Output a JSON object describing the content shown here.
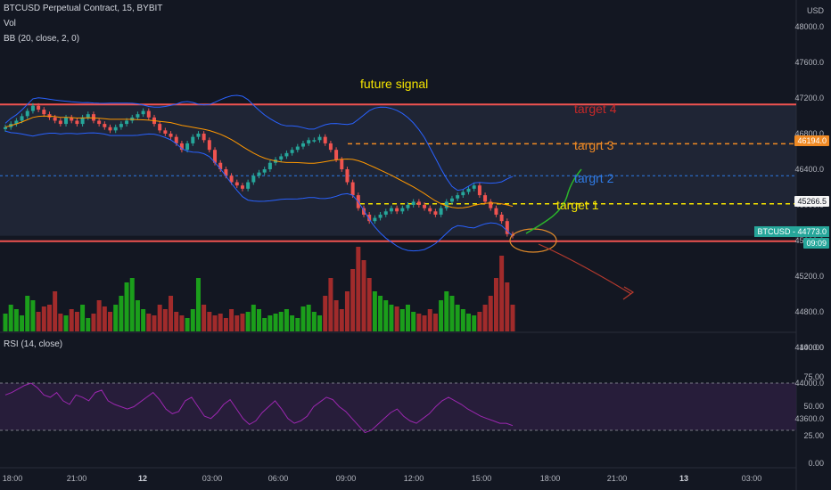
{
  "header": {
    "symbol_line": "BTCUSD Perpetual Contract, 15, BYBIT",
    "vol_label": "Vol",
    "bb_label": "BB (20, close, 2, 0)",
    "rsi_label": "RSI (14, close)"
  },
  "price_axis": {
    "currency": "USD",
    "ticks": [
      "48000.0",
      "47600.0",
      "47200.0",
      "46800.0",
      "46400.0",
      "46000.0",
      "45600.0",
      "45200.0",
      "44800.0",
      "44400.0",
      "44000.0",
      "43600.0"
    ]
  },
  "rsi_axis": {
    "ticks": [
      "100.00",
      "75.00",
      "50.00",
      "25.00",
      "0.00"
    ]
  },
  "time_axis": {
    "ticks": [
      "18:00",
      "21:00",
      "12",
      "03:00",
      "06:00",
      "09:00",
      "12:00",
      "15:00",
      "18:00",
      "21:00",
      "13",
      "03:00"
    ]
  },
  "price_tags": {
    "target3": "46194.0",
    "target1": "45266.5",
    "current_symbol": "BTCUSD",
    "current_price": "44773.0",
    "countdown": "09:09"
  },
  "annotations": {
    "title": "future signal",
    "target4": "target 4",
    "target3": "targrt 3",
    "target2": "targrt 2",
    "target1": "target 1"
  },
  "colors": {
    "background": "#131722",
    "up": "#26a69a",
    "down": "#ef5350",
    "vol_up": "#1b9e1b",
    "vol_down": "#a12b2b",
    "bb_band": "#2962ff",
    "bb_basis": "#ff9800",
    "rsi_line": "#9c27b0",
    "title_yellow": "#f5e400",
    "target4_red": "#c62828",
    "target3_orange": "#f08a24",
    "target2_blue": "#2f7be6",
    "target1_yellow": "#f5e400"
  },
  "chart_data": {
    "type": "candlestick",
    "symbol": "BTCUSD",
    "interval": "15",
    "ylim": [
      43400,
      48200
    ],
    "close_series": [
      46450,
      46500,
      46550,
      46620,
      46700,
      46780,
      46720,
      46650,
      46600,
      46550,
      46500,
      46600,
      46550,
      46500,
      46600,
      46650,
      46550,
      46500,
      46450,
      46400,
      46450,
      46500,
      46550,
      46600,
      46650,
      46700,
      46600,
      46500,
      46400,
      46350,
      46300,
      46200,
      46100,
      46200,
      46300,
      46350,
      46250,
      46100,
      45900,
      45800,
      45700,
      45600,
      45550,
      45500,
      45600,
      45700,
      45750,
      45800,
      45900,
      45950,
      46000,
      46050,
      46100,
      46150,
      46200,
      46250,
      46250,
      46300,
      46200,
      46100,
      45950,
      45800,
      45600,
      45400,
      45200,
      45100,
      45000,
      45050,
      45100,
      45150,
      45200,
      45150,
      45200,
      45250,
      45300,
      45250,
      45200,
      45150,
      45100,
      45200,
      45300,
      45350,
      45400,
      45450,
      45500,
      45550,
      45400,
      45300,
      45200,
      45100,
      45000,
      44800,
      44773
    ],
    "volume_series": [
      20,
      30,
      25,
      18,
      40,
      35,
      22,
      28,
      30,
      45,
      20,
      18,
      25,
      22,
      30,
      15,
      20,
      35,
      28,
      22,
      30,
      40,
      55,
      60,
      35,
      25,
      20,
      18,
      30,
      25,
      40,
      22,
      18,
      15,
      25,
      60,
      30,
      22,
      18,
      20,
      15,
      25,
      18,
      20,
      22,
      30,
      25,
      15,
      18,
      20,
      22,
      25,
      18,
      15,
      28,
      30,
      22,
      18,
      40,
      60,
      35,
      25,
      45,
      70,
      95,
      80,
      60,
      45,
      40,
      35,
      30,
      28,
      25,
      30,
      22,
      20,
      18,
      25,
      20,
      35,
      45,
      40,
      30,
      25,
      20,
      18,
      22,
      30,
      40,
      60,
      85,
      55,
      30
    ],
    "rsi_series": [
      60,
      62,
      65,
      68,
      70,
      66,
      60,
      58,
      62,
      55,
      52,
      60,
      58,
      55,
      62,
      64,
      55,
      52,
      50,
      48,
      50,
      54,
      58,
      62,
      56,
      48,
      44,
      46,
      55,
      58,
      50,
      42,
      40,
      45,
      52,
      56,
      48,
      40,
      35,
      38,
      45,
      50,
      55,
      48,
      40,
      36,
      38,
      42,
      50,
      54,
      58,
      56,
      50,
      46,
      40,
      34,
      28,
      30,
      35,
      40,
      45,
      48,
      42,
      38,
      36,
      40,
      44,
      50,
      55,
      58,
      55,
      52,
      48,
      45,
      42,
      40,
      38,
      36,
      36,
      34
    ],
    "rsi_bands": [
      30,
      70
    ],
    "levels": {
      "target4": 46800,
      "target3": 46194,
      "target2": 45700,
      "target1": 45266.5,
      "support": 44773
    }
  }
}
